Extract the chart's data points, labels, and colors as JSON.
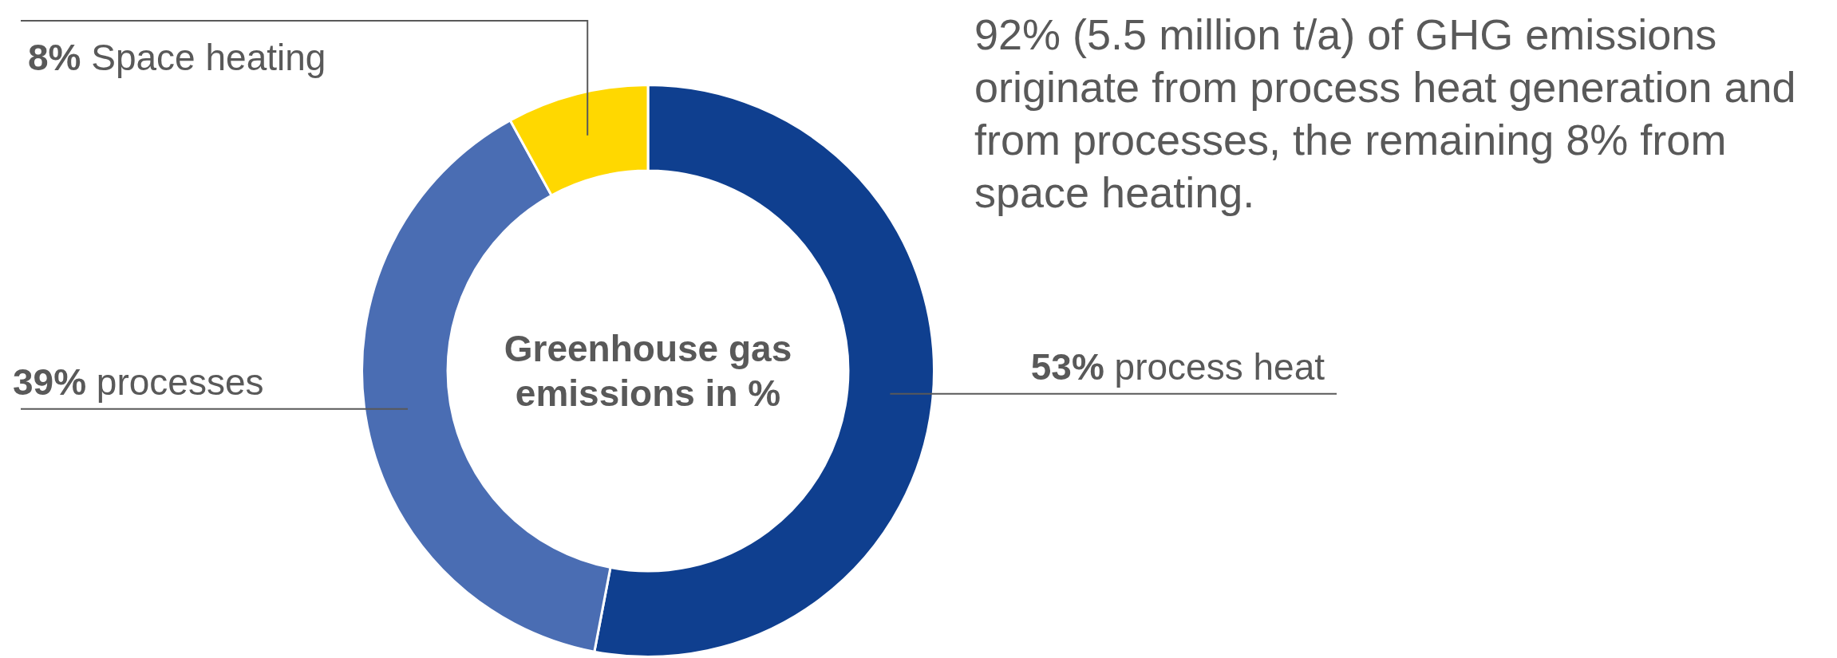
{
  "chart_data": {
    "type": "donut",
    "title": "Greenhouse gas emissions in %",
    "categories": [
      "process heat",
      "processes",
      "Space heating"
    ],
    "values": [
      53,
      39,
      8
    ],
    "colors": [
      "#0f3f8f",
      "#4a6db3",
      "#ffd800"
    ],
    "value_labels": [
      "53%",
      "39%",
      "8%"
    ],
    "legend": false,
    "annotations": [
      "92% (5.5 million t/a) of GHG emissions originate from process heat generation and from processes, the remaining 8% from space heating."
    ]
  }
}
